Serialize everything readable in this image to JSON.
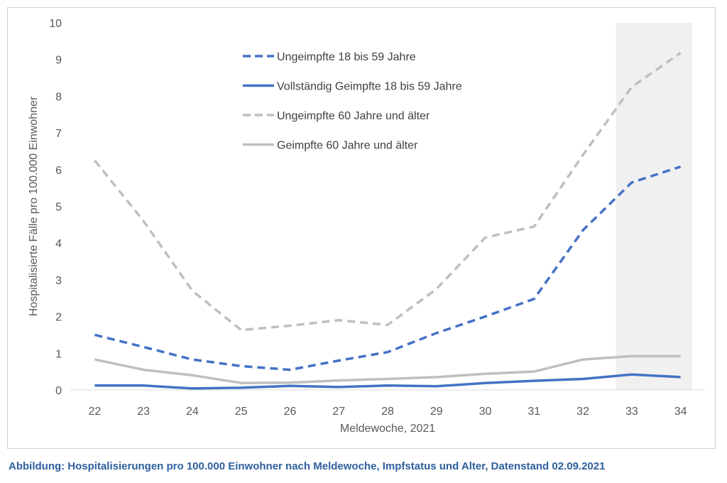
{
  "caption": "Abbildung: Hospitalisierungen pro 100.000 Einwohner nach Meldewoche, Impfstatus und Alter, Datenstand 02.09.2021",
  "chart_data": {
    "type": "line",
    "title": "",
    "xlabel": "Meldewoche, 2021",
    "ylabel": "Hospitalisierte Fälle pro 100.000 Einwohner",
    "x": [
      22,
      23,
      24,
      25,
      26,
      27,
      28,
      29,
      30,
      31,
      32,
      33,
      34
    ],
    "ylim": [
      0,
      10
    ],
    "yticks": [
      0,
      1,
      2,
      3,
      4,
      5,
      6,
      7,
      8,
      9,
      10
    ],
    "grid": false,
    "legend_position": "top-center",
    "highlight_region": {
      "x_from": 33,
      "x_to": 34
    },
    "series": [
      {
        "name": "Ungeimpfte 18 bis 59 Jahre",
        "color": "#4472c4",
        "dash": "dashed",
        "values": [
          1.5,
          1.17,
          0.83,
          0.65,
          0.55,
          0.8,
          1.03,
          1.55,
          2.0,
          2.48,
          4.35,
          5.65,
          6.08
        ]
      },
      {
        "name": "Vollständig Geimpfte 18 bis 59 Jahre",
        "color": "#4472c4",
        "dash": "solid",
        "values": [
          0.12,
          0.12,
          0.04,
          0.06,
          0.11,
          0.08,
          0.12,
          0.1,
          0.19,
          0.25,
          0.3,
          0.42,
          0.35
        ]
      },
      {
        "name": "Ungeimpfte 60 Jahre und älter",
        "color": "#bfbfbf",
        "dash": "dashed",
        "values": [
          6.25,
          4.6,
          2.7,
          1.63,
          1.75,
          1.9,
          1.77,
          2.75,
          4.15,
          4.45,
          6.4,
          8.25,
          9.18
        ]
      },
      {
        "name": "Geimpfte 60 Jahre und älter",
        "color": "#bfbfbf",
        "dash": "solid",
        "values": [
          0.83,
          0.55,
          0.4,
          0.19,
          0.2,
          0.26,
          0.3,
          0.35,
          0.44,
          0.5,
          0.83,
          0.92,
          0.92
        ]
      }
    ]
  }
}
